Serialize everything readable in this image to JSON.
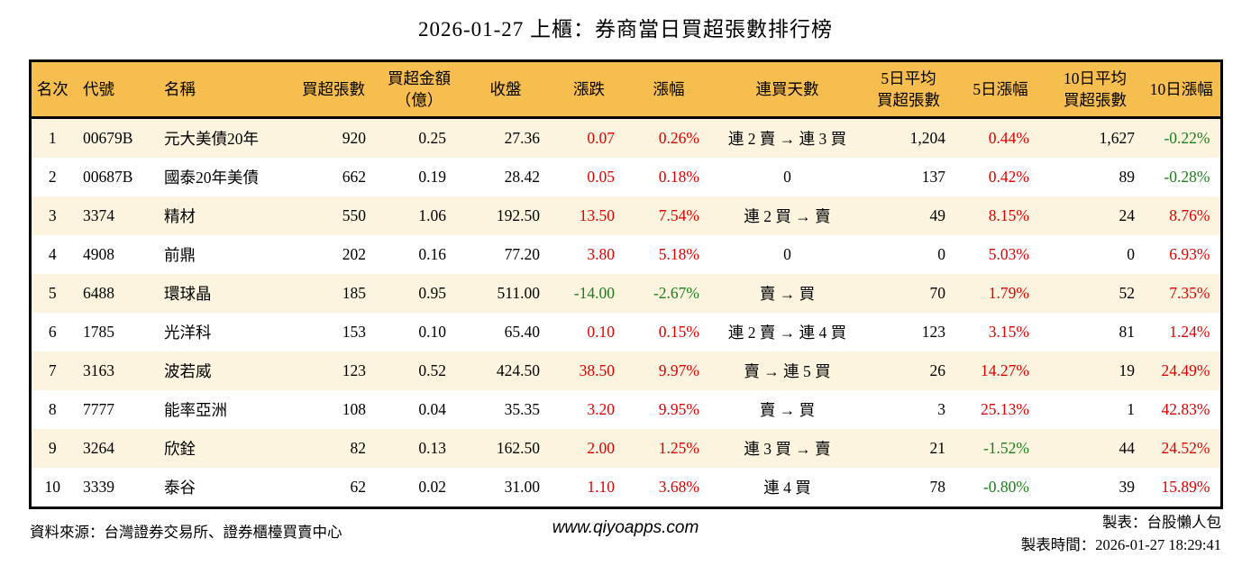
{
  "title": "2026-01-27 上櫃：券商當日買超張數排行榜",
  "colors": {
    "up": "#e00000",
    "down": "#1e7d1e",
    "header_bg": "#f6be4e",
    "row_alt": "#fcf4de",
    "border": "#000000"
  },
  "table": {
    "columns": [
      {
        "id": "rank",
        "label": "名次"
      },
      {
        "id": "code",
        "label": "代號"
      },
      {
        "id": "name",
        "label": "名稱"
      },
      {
        "id": "netbuy",
        "label": "買超張數"
      },
      {
        "id": "amount",
        "label": "買超金額",
        "label2": "（億）"
      },
      {
        "id": "close",
        "label": "收盤"
      },
      {
        "id": "change",
        "label": "漲跌",
        "signed": true
      },
      {
        "id": "pct",
        "label": "漲幅",
        "signed": true
      },
      {
        "id": "streak",
        "label": "連買天數"
      },
      {
        "id": "avg5",
        "label": "5日平均",
        "label2": "買超張數"
      },
      {
        "id": "pct5",
        "label": "5日漲幅",
        "signed": true
      },
      {
        "id": "avg10",
        "label": "10日平均",
        "label2": "買超張數"
      },
      {
        "id": "pct10",
        "label": "10日漲幅",
        "signed": true
      }
    ],
    "rows": [
      {
        "rank": "1",
        "code": "00679B",
        "name": "元大美債20年",
        "netbuy": "920",
        "amount": "0.25",
        "close": "27.36",
        "change": "0.07",
        "pct": "0.26%",
        "streak": "連 2 賣 → 連 3 買",
        "avg5": "1,204",
        "pct5": "0.44%",
        "avg10": "1,627",
        "pct10": "-0.22%"
      },
      {
        "rank": "2",
        "code": "00687B",
        "name": "國泰20年美債",
        "netbuy": "662",
        "amount": "0.19",
        "close": "28.42",
        "change": "0.05",
        "pct": "0.18%",
        "streak": "0",
        "avg5": "137",
        "pct5": "0.42%",
        "avg10": "89",
        "pct10": "-0.28%"
      },
      {
        "rank": "3",
        "code": "3374",
        "name": "精材",
        "netbuy": "550",
        "amount": "1.06",
        "close": "192.50",
        "change": "13.50",
        "pct": "7.54%",
        "streak": "連 2 買 → 賣",
        "avg5": "49",
        "pct5": "8.15%",
        "avg10": "24",
        "pct10": "8.76%"
      },
      {
        "rank": "4",
        "code": "4908",
        "name": "前鼎",
        "netbuy": "202",
        "amount": "0.16",
        "close": "77.20",
        "change": "3.80",
        "pct": "5.18%",
        "streak": "0",
        "avg5": "0",
        "pct5": "5.03%",
        "avg10": "0",
        "pct10": "6.93%"
      },
      {
        "rank": "5",
        "code": "6488",
        "name": "環球晶",
        "netbuy": "185",
        "amount": "0.95",
        "close": "511.00",
        "change": "-14.00",
        "pct": "-2.67%",
        "streak": "賣 → 買",
        "avg5": "70",
        "pct5": "1.79%",
        "avg10": "52",
        "pct10": "7.35%"
      },
      {
        "rank": "6",
        "code": "1785",
        "name": "光洋科",
        "netbuy": "153",
        "amount": "0.10",
        "close": "65.40",
        "change": "0.10",
        "pct": "0.15%",
        "streak": "連 2 賣 → 連 4 買",
        "avg5": "123",
        "pct5": "3.15%",
        "avg10": "81",
        "pct10": "1.24%"
      },
      {
        "rank": "7",
        "code": "3163",
        "name": "波若威",
        "netbuy": "123",
        "amount": "0.52",
        "close": "424.50",
        "change": "38.50",
        "pct": "9.97%",
        "streak": "賣 → 連 5 買",
        "avg5": "26",
        "pct5": "14.27%",
        "avg10": "19",
        "pct10": "24.49%"
      },
      {
        "rank": "8",
        "code": "7777",
        "name": "能率亞洲",
        "netbuy": "108",
        "amount": "0.04",
        "close": "35.35",
        "change": "3.20",
        "pct": "9.95%",
        "streak": "賣 → 買",
        "avg5": "3",
        "pct5": "25.13%",
        "avg10": "1",
        "pct10": "42.83%"
      },
      {
        "rank": "9",
        "code": "3264",
        "name": "欣銓",
        "netbuy": "82",
        "amount": "0.13",
        "close": "162.50",
        "change": "2.00",
        "pct": "1.25%",
        "streak": "連 3 買 → 賣",
        "avg5": "21",
        "pct5": "-1.52%",
        "avg10": "44",
        "pct10": "24.52%"
      },
      {
        "rank": "10",
        "code": "3339",
        "name": "泰谷",
        "netbuy": "62",
        "amount": "0.02",
        "close": "31.00",
        "change": "1.10",
        "pct": "3.68%",
        "streak": "連 4 買",
        "avg5": "78",
        "pct5": "-0.80%",
        "avg10": "39",
        "pct10": "15.89%"
      }
    ]
  },
  "footer": {
    "source": "資料來源：台灣證券交易所、證券櫃檯買賣中心",
    "website": "www.qiyoapps.com",
    "author": "製表：台股懶人包",
    "timestamp": "製表時間：2026-01-27 18:29:41"
  }
}
